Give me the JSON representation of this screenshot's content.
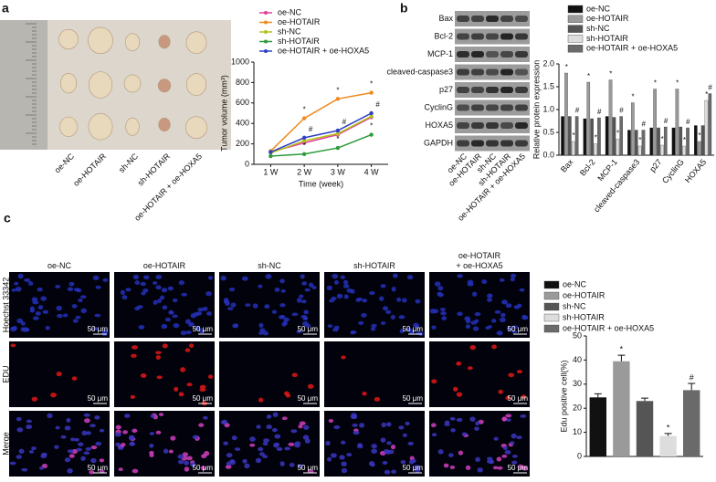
{
  "panel_labels": [
    "a",
    "b",
    "c"
  ],
  "panel_a": {
    "tumor_labels": [
      "oe-NC",
      "oe-HOTAIR",
      "sh-NC",
      "sh-HOTAIR",
      "oe-HOTAIR + oe-HOXA5"
    ]
  },
  "panel_b": {
    "blot_rows": [
      "Bax",
      "Bcl-2",
      "MCP-1",
      "cleaved-caspase3",
      "p27",
      "CyclinG",
      "HOXA5",
      "GAPDH"
    ],
    "lanes": [
      "oe-NC",
      "oe-HOTAIR",
      "sh-NC",
      "sh-HOTAIR",
      "oe-HOTAIR + oe-HOXA5"
    ]
  },
  "panel_c": {
    "columns": [
      "oe-NC",
      "oe-HOTAIR",
      "sh-NC",
      "sh-HOTAIR",
      "oe-HOTAIR\n+ oe-HOXA5"
    ],
    "rows": [
      "Hoechst 33342",
      "EDU",
      "Merge"
    ],
    "scale_bar": "50 μm"
  },
  "chart_data": [
    {
      "type": "line",
      "xlabel": "Time (week)",
      "ylabel": "Tumor volume (mm³)",
      "categories": [
        "1 W",
        "2 W",
        "3 W",
        "4 W"
      ],
      "ylim": [
        0,
        1000
      ],
      "yticks": [
        0,
        200,
        400,
        600,
        800,
        1000
      ],
      "series": [
        {
          "name": "oe-NC",
          "color": "#e0409a",
          "values": [
            120,
            210,
            290,
            460
          ],
          "markers": [
            null,
            null,
            null,
            null
          ]
        },
        {
          "name": "oe-HOTAIR",
          "color": "#f08a1c",
          "values": [
            130,
            450,
            640,
            700
          ],
          "markers": [
            null,
            "*",
            "*",
            "*"
          ]
        },
        {
          "name": "sh-NC",
          "color": "#b5c21a",
          "values": [
            110,
            230,
            300,
            470
          ],
          "markers": [
            null,
            null,
            null,
            null
          ]
        },
        {
          "name": "sh-HOTAIR",
          "color": "#2e9a3a",
          "values": [
            80,
            100,
            160,
            290
          ],
          "markers": [
            null,
            "*",
            "*",
            "*"
          ]
        },
        {
          "name": "oe-HOTAIR + oe-HOXA5",
          "color": "#2c3fc8",
          "values": [
            120,
            260,
            330,
            500
          ],
          "markers": [
            null,
            "#",
            "#",
            "#"
          ]
        }
      ]
    },
    {
      "type": "bar",
      "ylabel": "Relative protein expression",
      "categories": [
        "Bax",
        "Bcl-2",
        "MCP-1",
        "cleaved-caspase3",
        "p27",
        "CyclinG",
        "HOXA5"
      ],
      "ylim": [
        0,
        2
      ],
      "yticks": [
        {
          "value": 0,
          "label": "0.0"
        },
        {
          "value": 0.5,
          "label": "0.5"
        },
        {
          "value": 1,
          "label": "1.0"
        },
        {
          "value": 1.5,
          "label": "1.5"
        },
        {
          "value": 2,
          "label": "2.0"
        }
      ],
      "series": [
        {
          "name": "oe-NC",
          "color": "#111111",
          "values": [
            0.85,
            0.8,
            0.85,
            0.55,
            0.6,
            0.6,
            0.65
          ],
          "markers": [
            null,
            null,
            null,
            null,
            null,
            null,
            null
          ]
        },
        {
          "name": "oe-HOTAIR",
          "color": "#9a9a9a",
          "values": [
            1.8,
            1.6,
            1.65,
            1.15,
            1.45,
            1.45,
            0.3
          ],
          "markers": [
            "*",
            "*",
            "*",
            "*",
            "*",
            "*",
            "*"
          ]
        },
        {
          "name": "sh-NC",
          "color": "#555555",
          "values": [
            0.85,
            0.8,
            0.83,
            0.55,
            0.6,
            0.62,
            0.65
          ],
          "markers": [
            null,
            null,
            null,
            null,
            null,
            null,
            null
          ]
        },
        {
          "name": "sh-HOTAIR",
          "color": "#dddddd",
          "values": [
            0.3,
            0.25,
            0.35,
            0.2,
            0.22,
            0.2,
            1.2
          ],
          "markers": [
            "*",
            "*",
            "*",
            "*",
            "*",
            "*",
            "*"
          ]
        },
        {
          "name": "oe-HOTAIR + oe-HOXA5",
          "color": "#6a6a6a",
          "values": [
            0.85,
            0.82,
            0.85,
            0.55,
            0.62,
            0.6,
            1.35
          ],
          "markers": [
            "#",
            "#",
            "#",
            "#",
            "#",
            "#",
            "#"
          ]
        }
      ]
    },
    {
      "type": "bar",
      "ylabel": "Edu positive cell(%)",
      "categories": [
        "oe-NC",
        "oe-HOTAIR",
        "sh-NC",
        "sh-HOTAIR",
        "oe-HOTAIR + oe-HOXA5"
      ],
      "colors": [
        "#111111",
        "#9a9a9a",
        "#555555",
        "#dddddd",
        "#6a6a6a"
      ],
      "values": [
        24.5,
        39.5,
        23,
        8.5,
        27.5
      ],
      "errors": [
        1.5,
        2.5,
        1.2,
        1,
        2.8
      ],
      "markers": [
        null,
        "*",
        null,
        "*",
        "#"
      ],
      "ylim": [
        0,
        50
      ],
      "yticks": [
        0,
        10,
        20,
        30,
        40,
        50
      ]
    }
  ]
}
